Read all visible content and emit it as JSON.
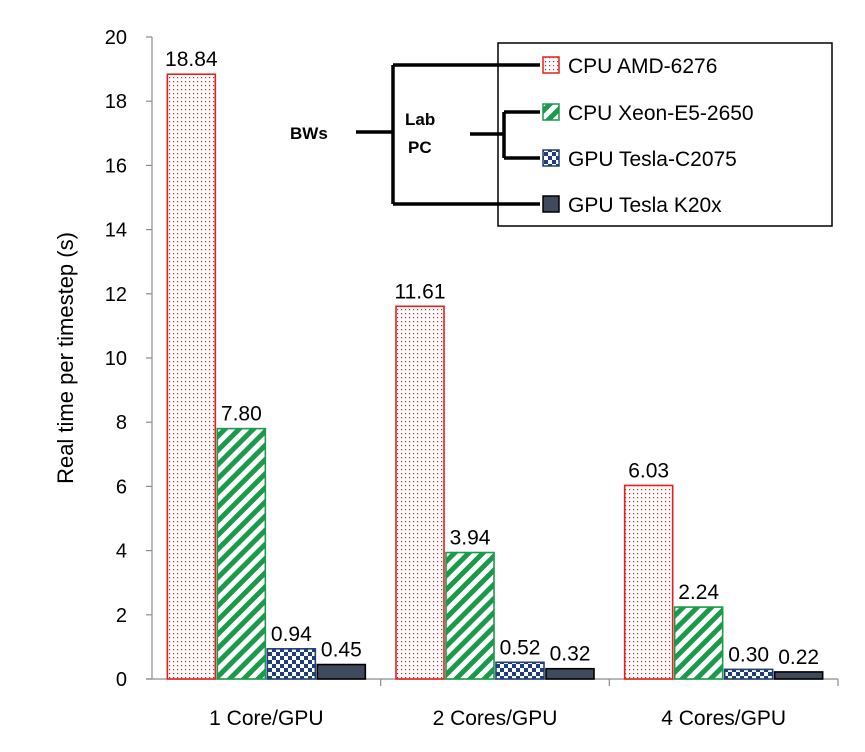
{
  "chart_data": {
    "type": "bar",
    "title": "",
    "xlabel": "",
    "ylabel": "Real time per timestep (s)",
    "ylim": [
      0,
      20
    ],
    "ytick_step": 2,
    "categories": [
      "1 Core/GPU",
      "2 Cores/GPU",
      "4 Cores/GPU"
    ],
    "series": [
      {
        "name": "CPU AMD-6276",
        "values": [
          18.84,
          11.61,
          6.03
        ],
        "labels": [
          "18.84",
          "11.61",
          "6.03"
        ],
        "color": "#e0211d",
        "pattern": "dots"
      },
      {
        "name": "CPU Xeon-E5-2650",
        "values": [
          7.8,
          3.94,
          2.24
        ],
        "labels": [
          "7.80",
          "3.94",
          "2.24"
        ],
        "color": "#1a9a4a",
        "pattern": "diagonal-stripes"
      },
      {
        "name": "GPU Tesla-C2075",
        "values": [
          0.94,
          0.52,
          0.3
        ],
        "labels": [
          "0.94",
          "0.52",
          "0.30"
        ],
        "color": "#1f3f7a",
        "pattern": "checkerboard"
      },
      {
        "name": "GPU Tesla K20x",
        "values": [
          0.45,
          0.32,
          0.22
        ],
        "labels": [
          "0.45",
          "0.32",
          "0.22"
        ],
        "color": "#3f4a5c",
        "pattern": "solid"
      }
    ],
    "legend": {
      "placement": "top-right",
      "group_labels": {
        "outer": "BWs",
        "inner_line1": "Lab",
        "inner_line2": "PC"
      }
    }
  }
}
